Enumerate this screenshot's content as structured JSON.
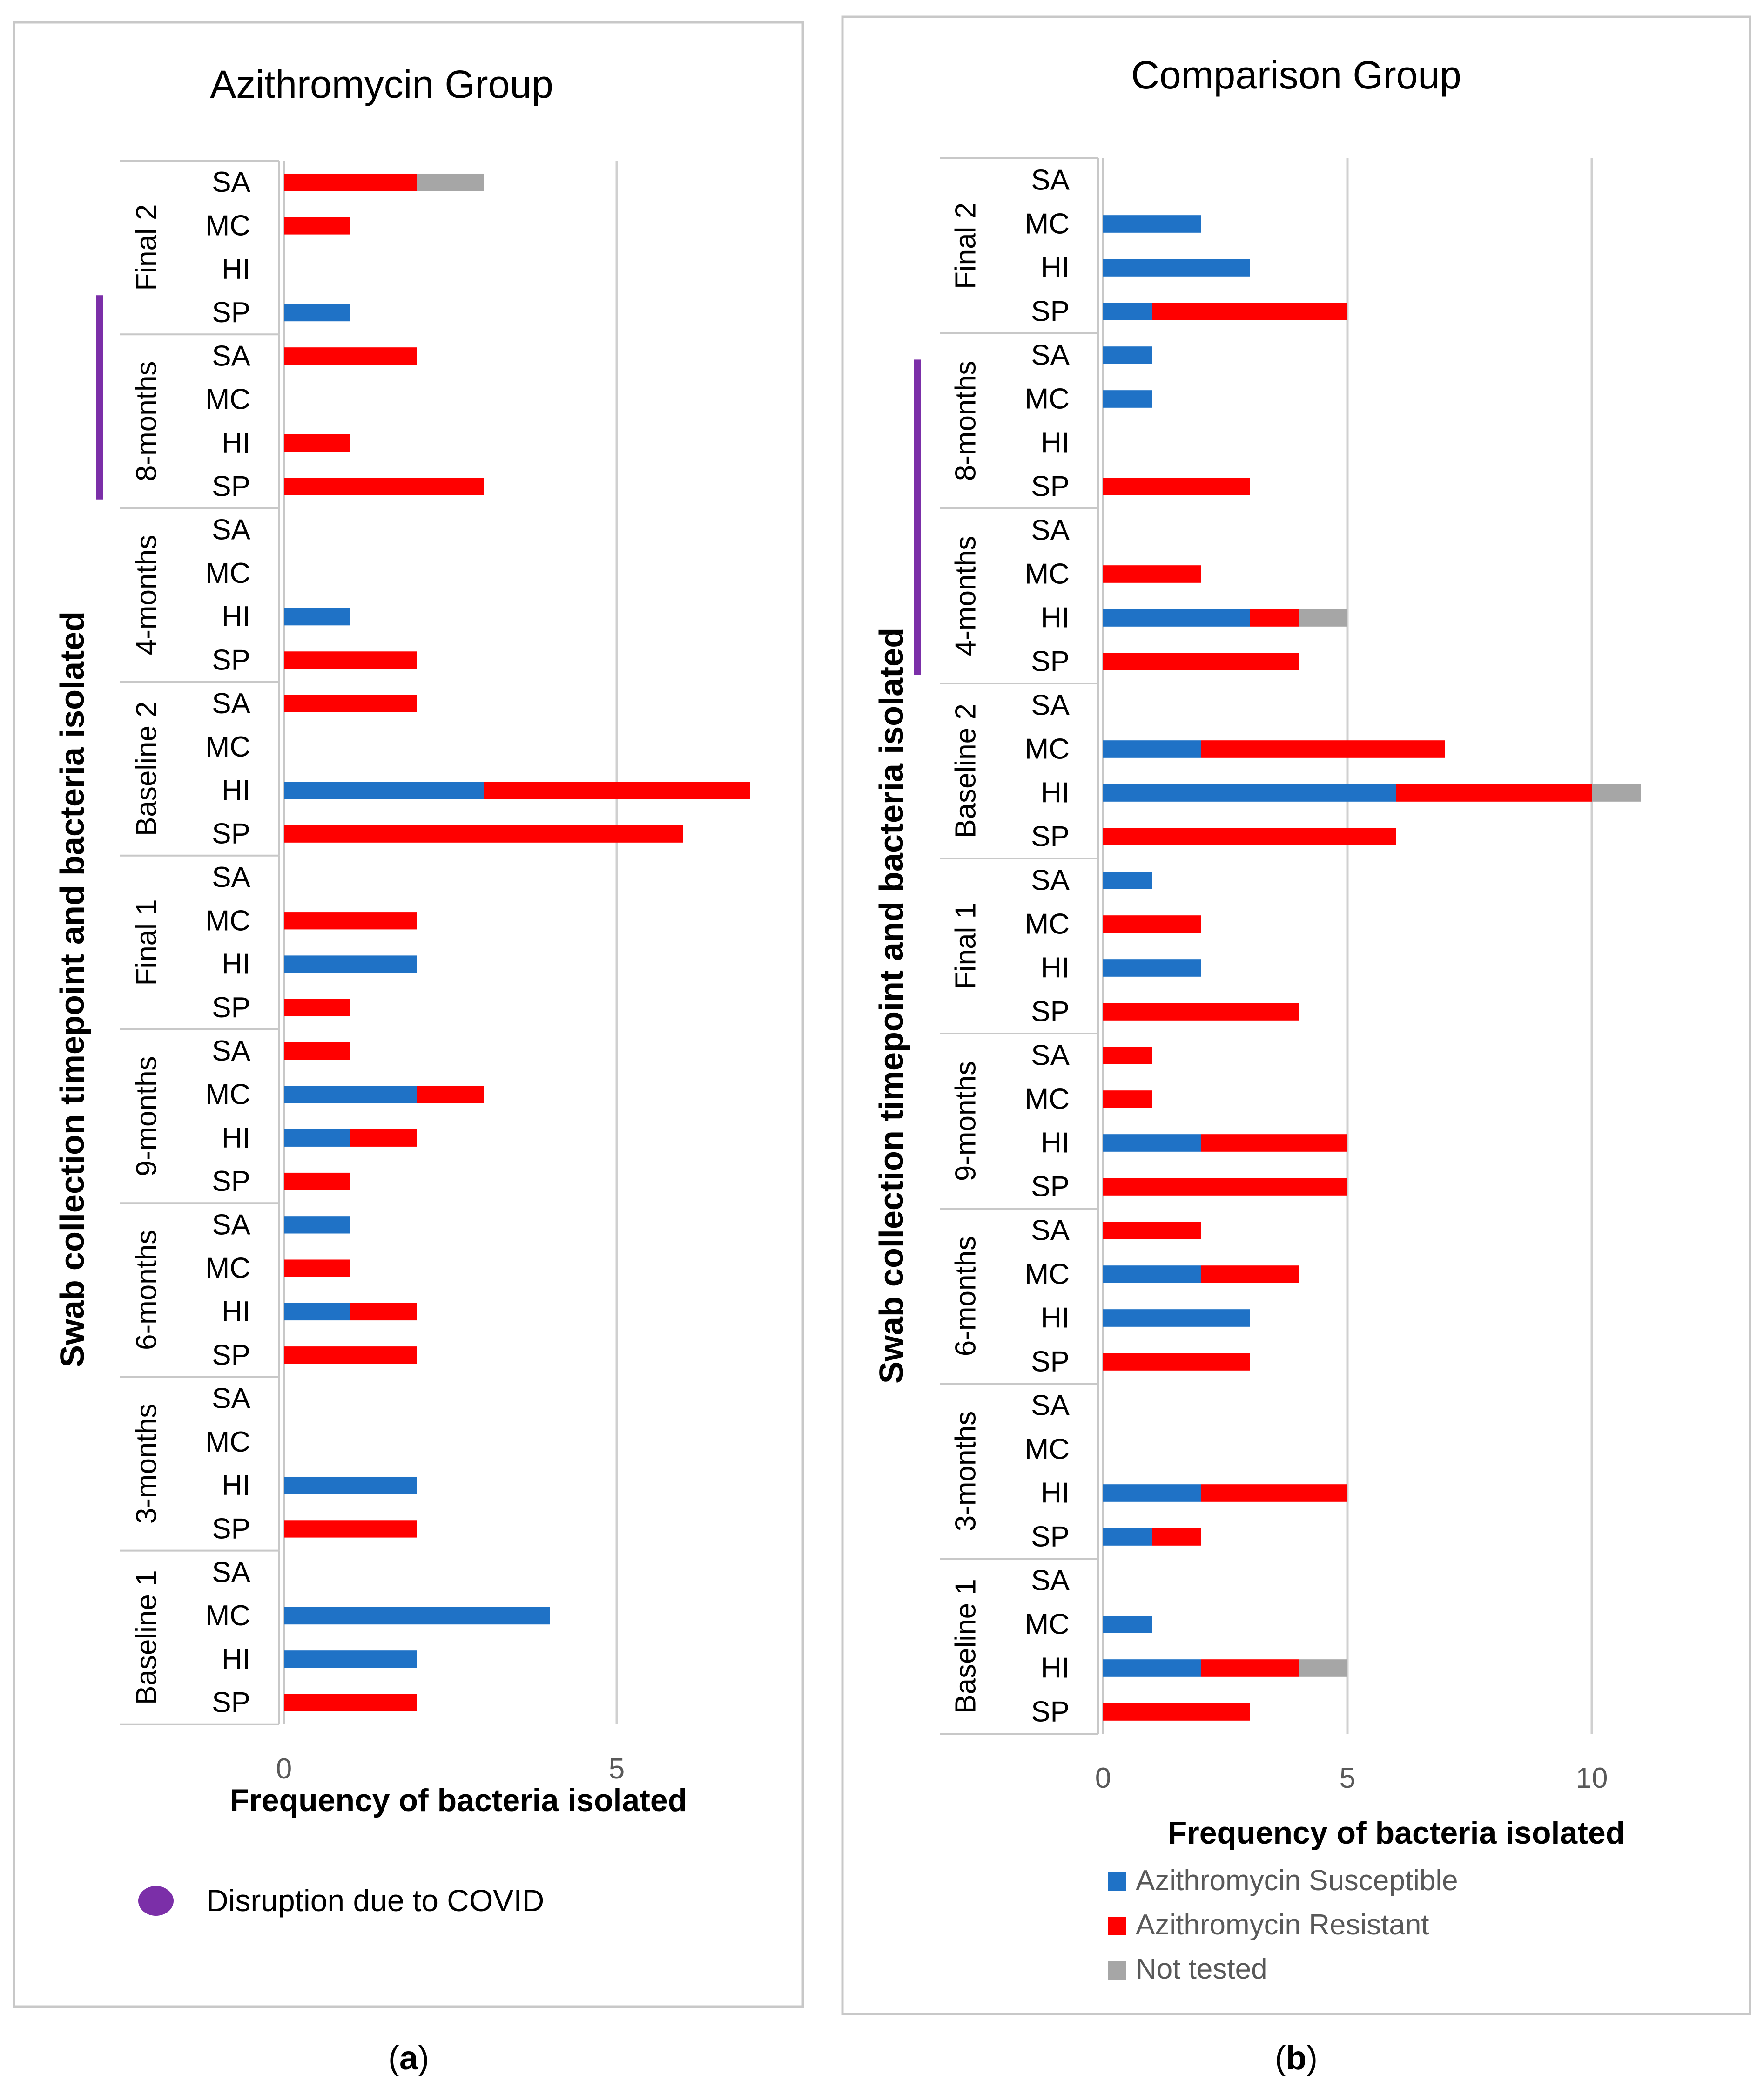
{
  "colors": {
    "susceptible": "#1F72C6",
    "resistant": "#FF0000",
    "not_tested": "#A6A6A6",
    "covid": "#7B2FA8",
    "grid": "#D0D0D0",
    "frame": "#C8C8C8",
    "axis_text": "#595959",
    "legend_text": "#595959"
  },
  "legend": {
    "susceptible": "Azithromycin Susceptible",
    "resistant": "Azithromycin Resistant",
    "not_tested": "Not tested",
    "covid": "Disruption due to COVID"
  },
  "captions": {
    "a": "(a)",
    "b": "(b)",
    "a_letter": "a",
    "b_letter": "b"
  },
  "chart_data": [
    {
      "type": "bar",
      "orientation": "horizontal",
      "stacked": true,
      "title": "Azithromycin Group",
      "xlabel": "Frequency of bacteria isolated",
      "ylabel": "Swab collection timepoint and bacteria isolated",
      "xlim": [
        0,
        7
      ],
      "xticks": [
        0,
        5
      ],
      "xtick_labels": [
        "0",
        "5"
      ],
      "covid_period": [
        "8-months",
        "Final 2"
      ],
      "series_names": [
        "Azithromycin Susceptible",
        "Azithromycin Resistant",
        "Not tested"
      ],
      "groups": [
        {
          "name": "Final 2",
          "rows": [
            {
              "label": "SA",
              "values": [
                0,
                2,
                1
              ]
            },
            {
              "label": "MC",
              "values": [
                0,
                1,
                0
              ]
            },
            {
              "label": "HI",
              "values": [
                0,
                0,
                0
              ]
            },
            {
              "label": "SP",
              "values": [
                1,
                0,
                0
              ]
            }
          ]
        },
        {
          "name": "8-months",
          "rows": [
            {
              "label": "SA",
              "values": [
                0,
                2,
                0
              ]
            },
            {
              "label": "MC",
              "values": [
                0,
                0,
                0
              ]
            },
            {
              "label": "HI",
              "values": [
                0,
                1,
                0
              ]
            },
            {
              "label": "SP",
              "values": [
                0,
                3,
                0
              ]
            }
          ]
        },
        {
          "name": "4-months",
          "rows": [
            {
              "label": "SA",
              "values": [
                0,
                0,
                0
              ]
            },
            {
              "label": "MC",
              "values": [
                0,
                0,
                0
              ]
            },
            {
              "label": "HI",
              "values": [
                1,
                0,
                0
              ]
            },
            {
              "label": "SP",
              "values": [
                0,
                2,
                0
              ]
            }
          ]
        },
        {
          "name": "Baseline 2",
          "rows": [
            {
              "label": "SA",
              "values": [
                0,
                2,
                0
              ]
            },
            {
              "label": "MC",
              "values": [
                0,
                0,
                0
              ]
            },
            {
              "label": "HI",
              "values": [
                3,
                4,
                0
              ]
            },
            {
              "label": "SP",
              "values": [
                0,
                6,
                0
              ]
            }
          ]
        },
        {
          "name": "Final 1",
          "rows": [
            {
              "label": "SA",
              "values": [
                0,
                0,
                0
              ]
            },
            {
              "label": "MC",
              "values": [
                0,
                2,
                0
              ]
            },
            {
              "label": "HI",
              "values": [
                2,
                0,
                0
              ]
            },
            {
              "label": "SP",
              "values": [
                0,
                1,
                0
              ]
            }
          ]
        },
        {
          "name": "9-months",
          "rows": [
            {
              "label": "SA",
              "values": [
                0,
                1,
                0
              ]
            },
            {
              "label": "MC",
              "values": [
                2,
                1,
                0
              ]
            },
            {
              "label": "HI",
              "values": [
                1,
                1,
                0
              ]
            },
            {
              "label": "SP",
              "values": [
                0,
                1,
                0
              ]
            }
          ]
        },
        {
          "name": "6-months",
          "rows": [
            {
              "label": "SA",
              "values": [
                1,
                0,
                0
              ]
            },
            {
              "label": "MC",
              "values": [
                0,
                1,
                0
              ]
            },
            {
              "label": "HI",
              "values": [
                1,
                1,
                0
              ]
            },
            {
              "label": "SP",
              "values": [
                0,
                2,
                0
              ]
            }
          ]
        },
        {
          "name": "3-months",
          "rows": [
            {
              "label": "SA",
              "values": [
                0,
                0,
                0
              ]
            },
            {
              "label": "MC",
              "values": [
                0,
                0,
                0
              ]
            },
            {
              "label": "HI",
              "values": [
                2,
                0,
                0
              ]
            },
            {
              "label": "SP",
              "values": [
                0,
                2,
                0
              ]
            }
          ]
        },
        {
          "name": "Baseline 1",
          "rows": [
            {
              "label": "SA",
              "values": [
                0,
                0,
                0
              ]
            },
            {
              "label": "MC",
              "values": [
                4,
                0,
                0
              ]
            },
            {
              "label": "HI",
              "values": [
                2,
                0,
                0
              ]
            },
            {
              "label": "SP",
              "values": [
                0,
                2,
                0
              ]
            }
          ]
        }
      ]
    },
    {
      "type": "bar",
      "orientation": "horizontal",
      "stacked": true,
      "title": "Comparison Group",
      "xlabel": "Frequency of bacteria isolated",
      "ylabel": "Swab collection timepoint and bacteria isolated",
      "xlim": [
        0,
        11
      ],
      "xticks": [
        0,
        5,
        10
      ],
      "xtick_labels": [
        "0",
        "5",
        "10"
      ],
      "covid_period": [
        "8-months",
        "4-months"
      ],
      "series_names": [
        "Azithromycin Susceptible",
        "Azithromycin Resistant",
        "Not tested"
      ],
      "groups": [
        {
          "name": "Final 2",
          "rows": [
            {
              "label": "SA",
              "values": [
                0,
                0,
                0
              ]
            },
            {
              "label": "MC",
              "values": [
                2,
                0,
                0
              ]
            },
            {
              "label": "HI",
              "values": [
                3,
                0,
                0
              ]
            },
            {
              "label": "SP",
              "values": [
                1,
                4,
                0
              ]
            }
          ]
        },
        {
          "name": "8-months",
          "rows": [
            {
              "label": "SA",
              "values": [
                1,
                0,
                0
              ]
            },
            {
              "label": "MC",
              "values": [
                1,
                0,
                0
              ]
            },
            {
              "label": "HI",
              "values": [
                0,
                0,
                0
              ]
            },
            {
              "label": "SP",
              "values": [
                0,
                3,
                0
              ]
            }
          ]
        },
        {
          "name": "4-months",
          "rows": [
            {
              "label": "SA",
              "values": [
                0,
                0,
                0
              ]
            },
            {
              "label": "MC",
              "values": [
                0,
                2,
                0
              ]
            },
            {
              "label": "HI",
              "values": [
                3,
                1,
                1
              ]
            },
            {
              "label": "SP",
              "values": [
                0,
                4,
                0
              ]
            }
          ]
        },
        {
          "name": "Baseline 2",
          "rows": [
            {
              "label": "SA",
              "values": [
                0,
                0,
                0
              ]
            },
            {
              "label": "MC",
              "values": [
                2,
                5,
                0
              ]
            },
            {
              "label": "HI",
              "values": [
                6,
                4,
                1
              ]
            },
            {
              "label": "SP",
              "values": [
                0,
                6,
                0
              ]
            }
          ]
        },
        {
          "name": "Final 1",
          "rows": [
            {
              "label": "SA",
              "values": [
                1,
                0,
                0
              ]
            },
            {
              "label": "MC",
              "values": [
                0,
                2,
                0
              ]
            },
            {
              "label": "HI",
              "values": [
                2,
                0,
                0
              ]
            },
            {
              "label": "SP",
              "values": [
                0,
                4,
                0
              ]
            }
          ]
        },
        {
          "name": "9-months",
          "rows": [
            {
              "label": "SA",
              "values": [
                0,
                1,
                0
              ]
            },
            {
              "label": "MC",
              "values": [
                0,
                1,
                0
              ]
            },
            {
              "label": "HI",
              "values": [
                2,
                3,
                0
              ]
            },
            {
              "label": "SP",
              "values": [
                0,
                5,
                0
              ]
            }
          ]
        },
        {
          "name": "6-months",
          "rows": [
            {
              "label": "SA",
              "values": [
                0,
                2,
                0
              ]
            },
            {
              "label": "MC",
              "values": [
                2,
                2,
                0
              ]
            },
            {
              "label": "HI",
              "values": [
                3,
                0,
                0
              ]
            },
            {
              "label": "SP",
              "values": [
                0,
                3,
                0
              ]
            }
          ]
        },
        {
          "name": "3-months",
          "rows": [
            {
              "label": "SA",
              "values": [
                0,
                0,
                0
              ]
            },
            {
              "label": "MC",
              "values": [
                0,
                0,
                0
              ]
            },
            {
              "label": "HI",
              "values": [
                2,
                3,
                0
              ]
            },
            {
              "label": "SP",
              "values": [
                1,
                1,
                0
              ]
            }
          ]
        },
        {
          "name": "Baseline 1",
          "rows": [
            {
              "label": "SA",
              "values": [
                0,
                0,
                0
              ]
            },
            {
              "label": "MC",
              "values": [
                1,
                0,
                0
              ]
            },
            {
              "label": "HI",
              "values": [
                2,
                2,
                1
              ]
            },
            {
              "label": "SP",
              "values": [
                0,
                3,
                0
              ]
            }
          ]
        }
      ]
    }
  ]
}
